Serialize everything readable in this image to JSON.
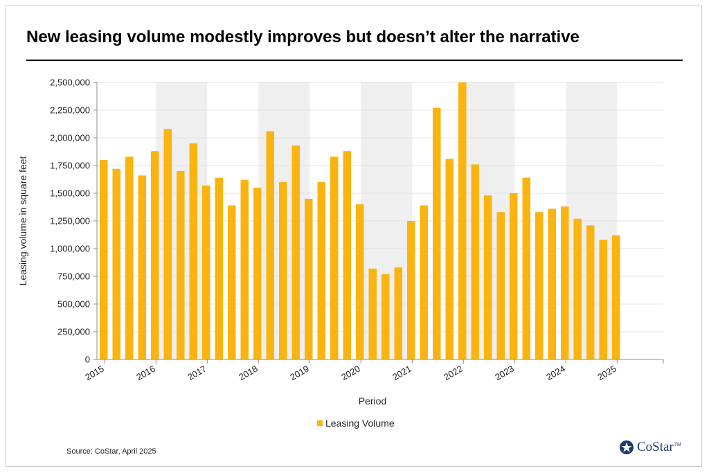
{
  "header": {
    "title": "New leasing volume modestly improves but doesn’t alter the narrative"
  },
  "footer": {
    "source": "Source: CoStar, April 2025",
    "logo_text": "CoStar",
    "logo_tm": "TM"
  },
  "colors": {
    "bar": "#FBB40F",
    "shade": "#EFEFEF",
    "grid": "#E3E3E3",
    "axis": "#8C8C8C",
    "logo": "#1C3A6B"
  },
  "chart_data": {
    "type": "bar",
    "xlabel": "Period",
    "ylabel": "Leasing volume in square feet",
    "ylim": [
      0,
      2500000
    ],
    "yticks": [
      0,
      250000,
      500000,
      750000,
      1000000,
      1250000,
      1500000,
      1750000,
      2000000,
      2250000,
      2500000
    ],
    "ytick_labels": [
      "0",
      "250,000",
      "500,000",
      "750,000",
      "1,000,000",
      "1,250,000",
      "1,500,000",
      "1,750,000",
      "2,000,000",
      "2,250,000",
      "2,500,000"
    ],
    "year_labels": [
      "2015",
      "2016",
      "2017",
      "2018",
      "2019",
      "2020",
      "2021",
      "2022",
      "2023",
      "2024",
      "2025"
    ],
    "shaded_years": [
      "2016",
      "2018",
      "2020",
      "2022",
      "2024"
    ],
    "categories": [
      "2015 Q1",
      "2015 Q2",
      "2015 Q3",
      "2015 Q4",
      "2016 Q1",
      "2016 Q2",
      "2016 Q3",
      "2016 Q4",
      "2017 Q1",
      "2017 Q2",
      "2017 Q3",
      "2017 Q4",
      "2018 Q1",
      "2018 Q2",
      "2018 Q3",
      "2018 Q4",
      "2019 Q1",
      "2019 Q2",
      "2019 Q3",
      "2019 Q4",
      "2020 Q1",
      "2020 Q2",
      "2020 Q3",
      "2020 Q4",
      "2021 Q1",
      "2021 Q2",
      "2021 Q3",
      "2021 Q4",
      "2022 Q1",
      "2022 Q2",
      "2022 Q3",
      "2022 Q4",
      "2023 Q1",
      "2023 Q2",
      "2023 Q3",
      "2023 Q4",
      "2024 Q1",
      "2024 Q2",
      "2024 Q3",
      "2024 Q4",
      "2025 Q1"
    ],
    "series": [
      {
        "name": "Leasing Volume",
        "values": [
          1800000,
          1720000,
          1830000,
          1660000,
          1880000,
          2080000,
          1700000,
          1950000,
          1570000,
          1640000,
          1390000,
          1620000,
          1550000,
          2060000,
          1600000,
          1930000,
          1450000,
          1600000,
          1830000,
          1880000,
          1400000,
          820000,
          770000,
          830000,
          1250000,
          1390000,
          2270000,
          1810000,
          2500000,
          1760000,
          1480000,
          1330000,
          1500000,
          1640000,
          1330000,
          1360000,
          1380000,
          1270000,
          1210000,
          1080000,
          1120000
        ]
      }
    ],
    "legend": "bottom-center",
    "grid": true
  }
}
